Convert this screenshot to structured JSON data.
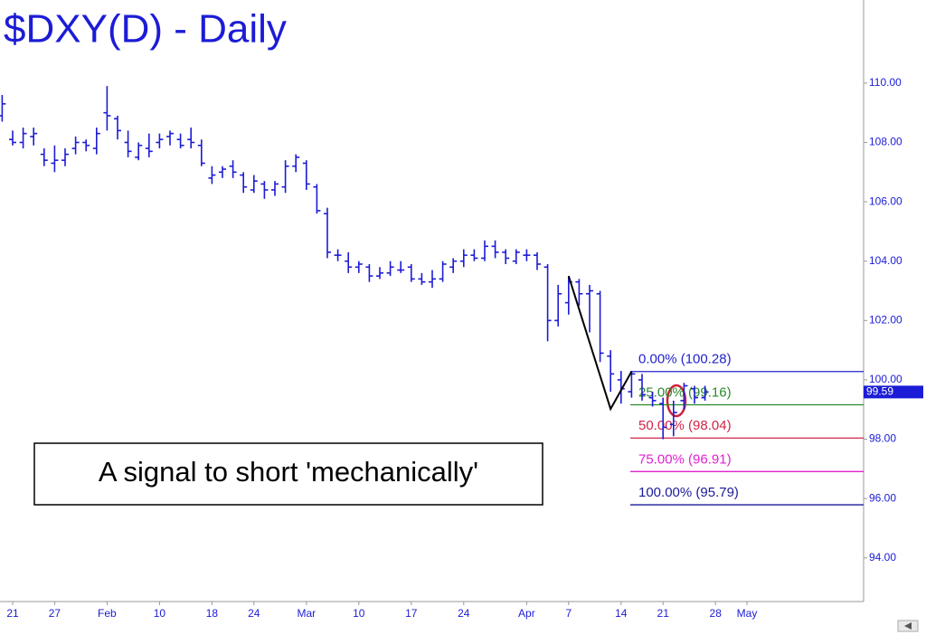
{
  "chart_data": {
    "type": "ohlc",
    "title": "$DXY(D) - Daily",
    "color": "#1c1cd6",
    "categories": [
      null,
      "21",
      null,
      null,
      null,
      "27",
      null,
      null,
      null,
      null,
      "Feb",
      null,
      null,
      null,
      null,
      "10",
      null,
      null,
      null,
      null,
      "18",
      null,
      null,
      null,
      "24",
      null,
      null,
      null,
      null,
      "Mar",
      null,
      null,
      null,
      null,
      "10",
      null,
      null,
      null,
      null,
      "17",
      null,
      null,
      null,
      null,
      "24",
      null,
      null,
      null,
      null,
      null,
      "Apr",
      null,
      null,
      null,
      "7",
      null,
      null,
      null,
      null,
      "14",
      null,
      null,
      null,
      "21",
      null,
      null,
      null,
      null,
      "28",
      null,
      null,
      "May"
    ],
    "high": [
      109.6,
      108.4,
      108.5,
      108.5,
      107.8,
      107.9,
      107.8,
      108.2,
      108.1,
      108.5,
      109.9,
      108.9,
      108.4,
      108.0,
      108.3,
      108.3,
      108.4,
      108.3,
      108.5,
      108.1,
      107.2,
      107.2,
      107.4,
      107.0,
      106.9,
      106.7,
      106.7,
      107.4,
      107.6,
      107.4,
      106.6,
      105.8,
      104.4,
      104.3,
      104.0,
      103.9,
      103.8,
      104.0,
      104.0,
      103.9,
      103.6,
      103.7,
      104.0,
      104.1,
      104.4,
      104.4,
      104.7,
      104.7,
      104.4,
      104.4,
      104.4,
      104.3,
      103.9,
      103.2,
      103.5,
      103.4,
      103.2,
      103.0,
      101.0,
      100.3,
      100.3,
      100.2,
      99.6,
      99.4,
      99.3,
      99.9,
      99.8,
      99.8,
      null,
      null,
      null,
      null
    ],
    "low": [
      108.7,
      107.9,
      107.8,
      107.9,
      107.2,
      107.0,
      107.2,
      107.6,
      107.7,
      107.6,
      108.4,
      108.1,
      107.5,
      107.4,
      107.5,
      107.8,
      107.9,
      107.8,
      107.8,
      107.2,
      106.6,
      106.8,
      106.8,
      106.3,
      106.3,
      106.1,
      106.2,
      106.3,
      107.0,
      106.4,
      105.6,
      104.1,
      104.0,
      103.6,
      103.6,
      103.3,
      103.4,
      103.5,
      103.6,
      103.3,
      103.2,
      103.1,
      103.3,
      103.6,
      103.8,
      104.0,
      104.0,
      104.1,
      103.9,
      103.9,
      104.0,
      103.7,
      101.3,
      101.8,
      102.2,
      102.5,
      101.6,
      100.6,
      99.6,
      99.2,
      99.4,
      99.3,
      99.1,
      98.0,
      98.1,
      99.0,
      99.2,
      99.3,
      null,
      null,
      null,
      null
    ],
    "open": [
      108.9,
      108.1,
      108.0,
      108.2,
      107.6,
      107.3,
      107.4,
      107.8,
      108.0,
      107.8,
      109.0,
      108.8,
      108.0,
      107.5,
      107.8,
      108.0,
      108.2,
      108.1,
      108.1,
      107.9,
      106.8,
      107.0,
      107.2,
      106.9,
      106.4,
      106.6,
      106.4,
      106.5,
      107.2,
      107.3,
      106.5,
      105.6,
      104.2,
      104.0,
      103.8,
      103.8,
      103.5,
      103.6,
      103.7,
      103.8,
      103.4,
      103.3,
      103.4,
      103.8,
      104.0,
      104.2,
      104.1,
      104.5,
      104.3,
      104.0,
      104.2,
      104.2,
      103.8,
      102.0,
      102.6,
      103.3,
      102.9,
      102.9,
      100.8,
      100.0,
      99.6,
      100.0,
      99.4,
      99.2,
      98.5,
      99.3,
      99.7,
      99.4,
      null,
      null,
      null,
      null
    ],
    "close": [
      109.3,
      108.0,
      108.3,
      108.3,
      107.4,
      107.4,
      107.6,
      108.0,
      107.9,
      108.3,
      108.9,
      108.4,
      107.7,
      107.9,
      107.7,
      108.1,
      108.3,
      107.9,
      108.0,
      107.3,
      106.9,
      107.1,
      107.0,
      106.5,
      106.7,
      106.4,
      106.6,
      107.2,
      107.5,
      106.6,
      105.7,
      104.3,
      104.2,
      103.8,
      103.9,
      103.5,
      103.6,
      103.8,
      103.7,
      103.4,
      103.3,
      103.4,
      103.9,
      104.0,
      104.2,
      104.1,
      104.5,
      104.3,
      104.1,
      104.3,
      104.2,
      103.9,
      102.0,
      102.9,
      103.3,
      102.9,
      103.0,
      100.9,
      100.2,
      99.7,
      100.2,
      99.5,
      99.3,
      98.4,
      98.9,
      99.8,
      99.4,
      99.59,
      null,
      null,
      null,
      null
    ],
    "ylim": [
      92.53,
      112.8
    ],
    "yticks": [
      {
        "value": 94,
        "label": "94.00"
      },
      {
        "value": 96,
        "label": "96.00"
      },
      {
        "value": 98,
        "label": "98.00"
      },
      {
        "value": 100,
        "label": "100.00"
      },
      {
        "value": 102,
        "label": "102.00"
      },
      {
        "value": 104,
        "label": "104.00"
      },
      {
        "value": 106,
        "label": "106.00"
      },
      {
        "value": 108,
        "label": "108.00"
      },
      {
        "value": 110,
        "label": "110.00"
      }
    ],
    "fib_levels": [
      {
        "value": 100.28,
        "label": "0.00% (100.28)",
        "color": "#2222cc"
      },
      {
        "value": 99.16,
        "label": "25.00% (99.16)",
        "color": "#2a8a2a"
      },
      {
        "value": 98.04,
        "label": "50.00% (98.04)",
        "color": "#d02448"
      },
      {
        "value": 96.91,
        "label": "75.00% (96.91)",
        "color": "#e020d0"
      },
      {
        "value": 95.79,
        "label": "100.00% (95.79)",
        "color": "#1a1a9a"
      }
    ],
    "pattern": {
      "category_index": [
        54,
        58,
        60
      ],
      "values": [
        103.5,
        99.02,
        100.28
      ],
      "color": "#000000"
    },
    "annotation": "A signal to short 'mechanically'"
  }
}
